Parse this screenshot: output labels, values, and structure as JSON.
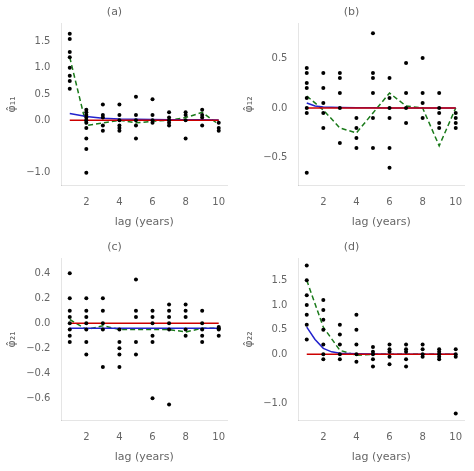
{
  "chart_data": [
    {
      "type": "scatter",
      "title": "(a)",
      "x_label": "lag (years)",
      "y_label": "φ̂₁₁",
      "xlim": [
        0.5,
        10.5
      ],
      "xticks": [
        2,
        4,
        6,
        8,
        10
      ],
      "ylim": [
        -1.25,
        1.85
      ],
      "yticks": [
        {
          "value": -1.0,
          "label": "−1.0"
        },
        {
          "value": 0.0,
          "label": "0.0"
        },
        {
          "value": 0.5,
          "label": "0.5"
        },
        {
          "value": 1.0,
          "label": "1.0"
        },
        {
          "value": 1.5,
          "label": "1.5"
        }
      ],
      "grid": false,
      "series": [
        {
          "type": "scatter",
          "marker": "circle",
          "color": "black",
          "x": [
            1,
            1,
            1,
            1,
            1,
            1,
            1,
            1,
            2,
            2,
            2,
            2,
            2,
            2,
            2,
            2,
            2,
            2,
            3,
            3,
            3,
            3,
            3,
            4,
            4,
            4,
            4,
            4,
            4,
            5,
            5,
            5,
            5,
            5,
            6,
            6,
            6,
            6,
            7,
            7,
            7,
            7,
            7,
            8,
            8,
            8,
            8,
            9,
            9,
            9,
            9,
            10,
            10,
            10
          ],
          "values": [
            1.65,
            1.55,
            1.3,
            1.2,
            1.0,
            0.85,
            0.75,
            0.6,
            0.2,
            0.15,
            0.1,
            0.05,
            0.0,
            -0.05,
            -0.15,
            -0.35,
            -0.55,
            -1.0,
            0.3,
            0.1,
            0.05,
            -0.1,
            -0.2,
            0.3,
            0.1,
            0.0,
            -0.1,
            -0.15,
            -0.2,
            0.45,
            0.1,
            0.0,
            -0.1,
            -0.35,
            0.4,
            0.1,
            0.0,
            -0.05,
            0.15,
            0.05,
            0.0,
            -0.05,
            -0.1,
            0.15,
            0.1,
            0.0,
            -0.35,
            0.2,
            0.1,
            0.05,
            -0.1,
            -0.05,
            -0.15,
            -0.2
          ]
        },
        {
          "type": "line",
          "line_style": "solid",
          "color": "#cc0000",
          "x": [
            1,
            10
          ],
          "values": [
            0.0,
            0.0
          ]
        },
        {
          "type": "line",
          "line_style": "solid",
          "color": "#2222cc",
          "x": [
            1,
            1.5,
            2,
            3,
            4,
            5,
            6,
            7,
            8,
            9,
            10
          ],
          "values": [
            0.13,
            0.1,
            0.07,
            0.04,
            0.025,
            0.018,
            0.013,
            0.01,
            0.008,
            0.007,
            0.006
          ]
        },
        {
          "type": "line",
          "line_style": "dashed",
          "color": "#1a7a1a",
          "x": [
            1,
            2,
            3,
            4,
            5,
            6,
            7,
            8,
            9,
            10
          ],
          "values": [
            1.2,
            -0.1,
            -0.05,
            0.0,
            -0.05,
            -0.02,
            0.0,
            0.05,
            0.15,
            -0.08
          ]
        }
      ]
    },
    {
      "type": "scatter",
      "title": "(b)",
      "x_label": "lag (years)",
      "y_label": "φ̂₁₂",
      "xlim": [
        0.5,
        10.5
      ],
      "xticks": [
        2,
        4,
        6,
        8,
        10
      ],
      "ylim": [
        -0.78,
        0.85
      ],
      "yticks": [
        {
          "value": -0.5,
          "label": "−0.5"
        },
        {
          "value": 0.0,
          "label": "0.0"
        },
        {
          "value": 0.5,
          "label": "0.5"
        }
      ],
      "grid": false,
      "series": [
        {
          "type": "scatter",
          "marker": "circle",
          "color": "black",
          "x": [
            1,
            1,
            1,
            1,
            1,
            1,
            1,
            1,
            2,
            2,
            2,
            2,
            2,
            3,
            3,
            3,
            3,
            3,
            4,
            4,
            4,
            4,
            5,
            5,
            5,
            5,
            5,
            5,
            6,
            6,
            6,
            6,
            6,
            6,
            7,
            7,
            7,
            7,
            8,
            8,
            8,
            8,
            9,
            9,
            9,
            9,
            9,
            10,
            10,
            10,
            10
          ],
          "values": [
            0.4,
            0.35,
            0.25,
            0.2,
            0.1,
            0.0,
            -0.05,
            -0.65,
            0.35,
            0.2,
            0.05,
            -0.05,
            -0.2,
            -0.35,
            0.35,
            0.3,
            0.15,
            0.0,
            -0.1,
            -0.2,
            -0.3,
            -0.4,
            0.75,
            0.35,
            0.3,
            0.15,
            -0.1,
            -0.4,
            0.3,
            0.1,
            0.0,
            -0.1,
            -0.4,
            -0.6,
            0.45,
            0.15,
            0.0,
            -0.15,
            0.5,
            0.15,
            0.05,
            -0.1,
            0.15,
            0.0,
            -0.05,
            -0.15,
            -0.2,
            -0.05,
            -0.1,
            -0.15,
            -0.2
          ]
        },
        {
          "type": "line",
          "line_style": "solid",
          "color": "#cc0000",
          "x": [
            1,
            10
          ],
          "values": [
            0.0,
            0.0
          ]
        },
        {
          "type": "line",
          "line_style": "solid",
          "color": "#2222cc",
          "x": [
            1,
            1.5,
            2,
            3,
            4,
            5,
            6,
            7,
            8,
            9,
            10
          ],
          "values": [
            0.05,
            0.02,
            0.01,
            0.005,
            0.003,
            0.002,
            0.001,
            0.001,
            0.001,
            0.001,
            0.001
          ]
        },
        {
          "type": "line",
          "line_style": "dashed",
          "color": "#1a7a1a",
          "x": [
            1,
            2,
            3,
            4,
            5,
            6,
            7,
            8,
            9,
            10
          ],
          "values": [
            0.12,
            -0.02,
            -0.2,
            -0.25,
            -0.05,
            0.15,
            0.02,
            0.0,
            -0.38,
            0.0
          ]
        }
      ]
    },
    {
      "type": "scatter",
      "title": "(c)",
      "x_label": "lag (years)",
      "y_label": "φ̂₂₁",
      "xlim": [
        0.5,
        10.5
      ],
      "xticks": [
        2,
        4,
        6,
        8,
        10
      ],
      "ylim": [
        -0.78,
        0.52
      ],
      "yticks": [
        {
          "value": -0.6,
          "label": "−0.6"
        },
        {
          "value": -0.4,
          "label": "−0.4"
        },
        {
          "value": -0.2,
          "label": "−0.2"
        },
        {
          "value": 0.0,
          "label": "0.0"
        },
        {
          "value": 0.2,
          "label": "0.2"
        },
        {
          "value": 0.4,
          "label": "0.4"
        }
      ],
      "grid": false,
      "series": [
        {
          "type": "scatter",
          "marker": "circle",
          "color": "black",
          "x": [
            1,
            1,
            1,
            1,
            1,
            1,
            1,
            1,
            2,
            2,
            2,
            2,
            2,
            2,
            2,
            3,
            3,
            3,
            3,
            3,
            4,
            4,
            4,
            4,
            4,
            5,
            5,
            5,
            5,
            5,
            6,
            6,
            6,
            6,
            6,
            6,
            7,
            7,
            7,
            7,
            7,
            7,
            8,
            8,
            8,
            8,
            8,
            9,
            9,
            9,
            9,
            9,
            10,
            10,
            10,
            10
          ],
          "values": [
            0.4,
            0.2,
            0.1,
            0.05,
            0.0,
            -0.05,
            -0.1,
            -0.15,
            0.2,
            0.1,
            0.05,
            0.0,
            -0.05,
            -0.15,
            -0.25,
            -0.35,
            0.2,
            0.1,
            0.0,
            -0.05,
            -0.05,
            -0.15,
            -0.2,
            -0.25,
            -0.35,
            0.35,
            0.1,
            0.05,
            -0.15,
            -0.25,
            -0.1,
            0.1,
            0.05,
            0.0,
            -0.15,
            -0.6,
            -0.65,
            0.15,
            0.1,
            0.05,
            0.0,
            -0.05,
            -0.1,
            0.15,
            0.1,
            0.05,
            -0.05,
            -0.15,
            0.1,
            0.0,
            -0.05,
            -0.1,
            -0.04,
            -0.1,
            -0.03,
            -0.05
          ]
        },
        {
          "type": "line",
          "line_style": "solid",
          "color": "#cc0000",
          "x": [
            1,
            10
          ],
          "values": [
            0.0,
            0.0
          ]
        },
        {
          "type": "line",
          "line_style": "solid",
          "color": "#2222cc",
          "x": [
            1,
            10
          ],
          "values": [
            -0.04,
            -0.04
          ]
        },
        {
          "type": "line",
          "line_style": "dashed",
          "color": "#1a7a1a",
          "x": [
            1,
            2,
            3,
            4,
            5,
            6,
            7,
            8,
            9,
            10
          ],
          "values": [
            0.03,
            -0.05,
            -0.02,
            -0.05,
            -0.05,
            -0.05,
            -0.05,
            -0.07,
            -0.04,
            -0.04
          ]
        }
      ]
    },
    {
      "type": "scatter",
      "title": "(d)",
      "x_label": "lag (years)",
      "y_label": "φ̂₂₂",
      "xlim": [
        0.5,
        10.5
      ],
      "xticks": [
        2,
        4,
        6,
        8,
        10
      ],
      "ylim": [
        -1.35,
        1.95
      ],
      "yticks": [
        {
          "value": -1.0,
          "label": "−1.0"
        },
        {
          "value": 0.0,
          "label": "0.0"
        },
        {
          "value": 0.5,
          "label": "0.5"
        },
        {
          "value": 1.0,
          "label": "1.0"
        },
        {
          "value": 1.5,
          "label": "1.5"
        }
      ],
      "grid": false,
      "series": [
        {
          "type": "scatter",
          "marker": "circle",
          "color": "black",
          "x": [
            1,
            1,
            1,
            1,
            1,
            1,
            1,
            2,
            2,
            2,
            2,
            2,
            2,
            2,
            3,
            3,
            3,
            3,
            3,
            4,
            4,
            4,
            4,
            4,
            5,
            5,
            5,
            5,
            5,
            6,
            6,
            6,
            6,
            6,
            7,
            7,
            7,
            7,
            7,
            8,
            8,
            8,
            8,
            9,
            9,
            9,
            9,
            9,
            10,
            10,
            10,
            10
          ],
          "values": [
            1.8,
            1.5,
            1.2,
            1.0,
            0.8,
            0.6,
            0.3,
            1.1,
            0.9,
            0.7,
            0.5,
            0.2,
            0.0,
            -0.1,
            0.6,
            0.4,
            0.2,
            0.0,
            -0.1,
            0.8,
            0.5,
            0.2,
            0.0,
            -0.15,
            0.15,
            0.05,
            0.0,
            -0.1,
            -0.25,
            0.2,
            0.1,
            0.05,
            -0.05,
            -0.2,
            0.2,
            0.1,
            0.05,
            -0.1,
            -0.25,
            0.2,
            0.1,
            0.0,
            -0.05,
            0.1,
            0.05,
            0.0,
            -0.05,
            -0.1,
            0.1,
            0.0,
            -0.05,
            -1.2
          ]
        },
        {
          "type": "line",
          "line_style": "solid",
          "color": "#cc0000",
          "x": [
            1,
            10
          ],
          "values": [
            0.0,
            0.0
          ]
        },
        {
          "type": "line",
          "line_style": "solid",
          "color": "#2222cc",
          "x": [
            1,
            1.5,
            2,
            2.5,
            3,
            4,
            5,
            6,
            7,
            8,
            9,
            10
          ],
          "values": [
            0.55,
            0.3,
            0.12,
            0.05,
            0.02,
            0.01,
            0.005,
            0.003,
            0.002,
            0.001,
            0.001,
            0.001
          ]
        },
        {
          "type": "line",
          "line_style": "dashed",
          "color": "#1a7a1a",
          "x": [
            1,
            2,
            3,
            4,
            5,
            6,
            7,
            8,
            9,
            10
          ],
          "values": [
            1.5,
            0.55,
            0.08,
            -0.02,
            0.0,
            0.0,
            0.0,
            0.0,
            0.0,
            0.0
          ]
        }
      ]
    }
  ]
}
